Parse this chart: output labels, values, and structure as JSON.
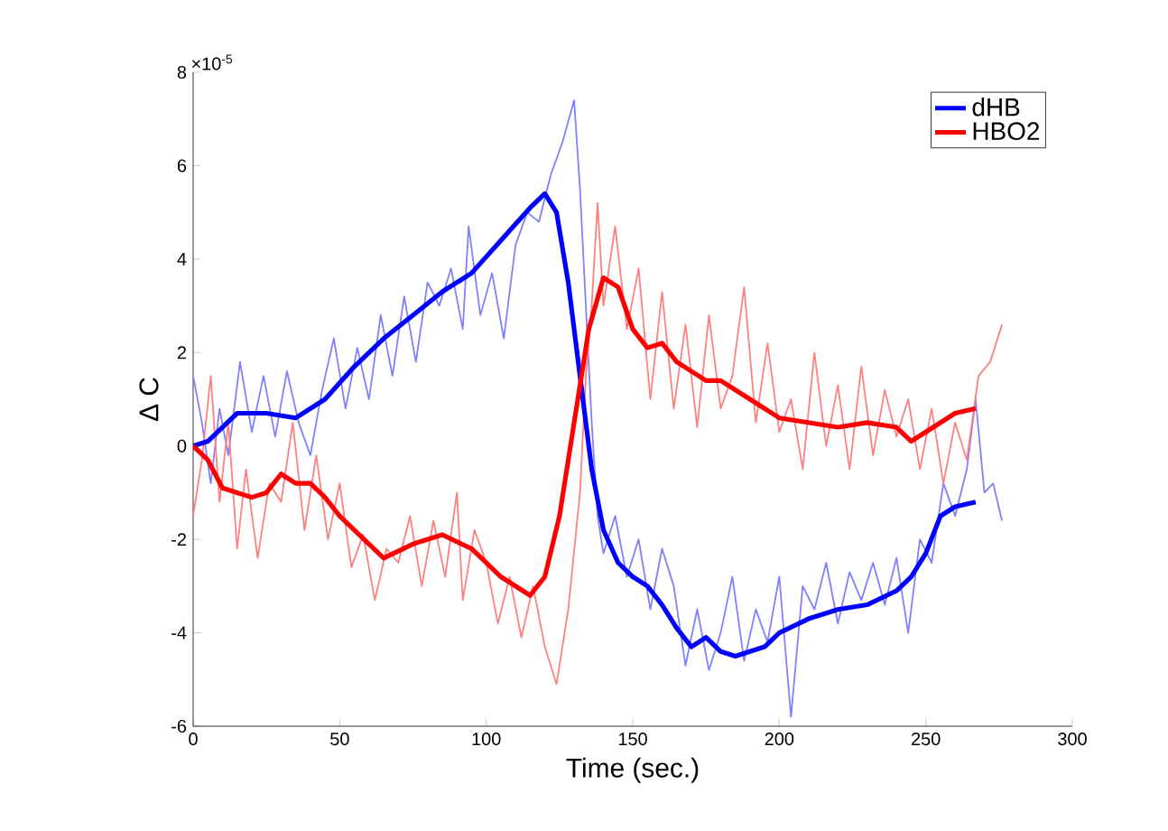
{
  "chart_data": {
    "type": "line",
    "xlabel": "Time (sec.)",
    "ylabel": "Δ C",
    "annotations": [
      "×10$^{-5}$"
    ],
    "xlim": [
      0,
      300
    ],
    "xticks": [
      0,
      50,
      100,
      150,
      200,
      250,
      300
    ],
    "ylim": [
      -6,
      8
    ],
    "yticks": [
      -6,
      -4,
      -2,
      0,
      2,
      4,
      6,
      8
    ],
    "grid": false,
    "legend": "top right",
    "marker": "none",
    "line_style": "solid",
    "series": [
      {
        "color": "#8080ff",
        "x": [
          0,
          3,
          6,
          9,
          12,
          16,
          20,
          24,
          28,
          32,
          36,
          40,
          44,
          48,
          52,
          56,
          60,
          64,
          68,
          72,
          76,
          80,
          84,
          88,
          92,
          94,
          98,
          102,
          106,
          110,
          114,
          118,
          122,
          126,
          130,
          132,
          134,
          136,
          138,
          140,
          144,
          148,
          152,
          156,
          160,
          164,
          168,
          172,
          176,
          180,
          184,
          188,
          192,
          196,
          200,
          204,
          208,
          212,
          216,
          220,
          224,
          228,
          232,
          236,
          240,
          244,
          248,
          252,
          256,
          260,
          264,
          267,
          270,
          273,
          276
        ],
        "values": [
          1.5,
          0.5,
          -0.8,
          0.8,
          -0.2,
          1.8,
          0.3,
          1.5,
          0.2,
          1.6,
          0.5,
          -0.2,
          1.2,
          2.3,
          0.8,
          2.1,
          1.0,
          2.8,
          1.5,
          3.2,
          1.8,
          3.5,
          3.0,
          3.8,
          2.5,
          4.7,
          2.8,
          3.7,
          2.3,
          4.3,
          5.0,
          4.8,
          5.8,
          6.5,
          7.4,
          5.5,
          3.0,
          0.5,
          -1.5,
          -2.3,
          -1.5,
          -2.8,
          -2.0,
          -3.5,
          -2.2,
          -3.0,
          -4.7,
          -3.5,
          -4.8,
          -4.0,
          -2.8,
          -4.6,
          -3.5,
          -4.2,
          -2.8,
          -5.8,
          -3.0,
          -3.5,
          -2.5,
          -3.8,
          -2.7,
          -3.3,
          -2.5,
          -3.4,
          -2.4,
          -4.0,
          -2.0,
          -2.5,
          -0.8,
          -1.5,
          -0.5,
          1.0,
          -1.0,
          -0.8,
          -1.6
        ]
      },
      {
        "color": "#ff8080",
        "x": [
          0,
          3,
          6,
          9,
          12,
          15,
          18,
          22,
          26,
          30,
          34,
          38,
          42,
          46,
          50,
          54,
          58,
          62,
          66,
          70,
          74,
          78,
          82,
          86,
          90,
          92,
          96,
          100,
          104,
          108,
          112,
          116,
          120,
          124,
          128,
          132,
          134,
          136,
          138,
          140,
          144,
          148,
          152,
          156,
          160,
          164,
          168,
          172,
          176,
          180,
          184,
          188,
          192,
          196,
          200,
          204,
          208,
          212,
          216,
          220,
          224,
          228,
          232,
          236,
          240,
          244,
          248,
          252,
          256,
          260,
          264,
          268,
          272,
          276
        ],
        "values": [
          -1.5,
          -0.3,
          1.5,
          -1.2,
          0.5,
          -2.2,
          -0.5,
          -2.4,
          -0.8,
          -1.2,
          0.5,
          -1.8,
          -0.2,
          -2.0,
          -0.8,
          -2.6,
          -1.9,
          -3.3,
          -2.2,
          -2.5,
          -1.5,
          -3.0,
          -1.6,
          -2.8,
          -1.0,
          -3.3,
          -1.8,
          -2.5,
          -3.8,
          -2.8,
          -4.1,
          -3.0,
          -4.3,
          -5.1,
          -3.5,
          -1.0,
          1.5,
          3.0,
          5.2,
          3.0,
          4.7,
          2.5,
          3.8,
          1.0,
          3.3,
          0.8,
          2.6,
          0.4,
          2.8,
          0.8,
          1.5,
          3.4,
          0.5,
          2.2,
          0.3,
          1.0,
          -0.5,
          2.0,
          0.0,
          1.3,
          -0.5,
          1.7,
          -0.2,
          1.2,
          0.2,
          1.0,
          -0.5,
          0.8,
          -0.8,
          0.5,
          -0.3,
          1.5,
          1.8,
          2.6
        ]
      },
      {
        "name": "dHB",
        "color": "#0000ff",
        "x": [
          0,
          5,
          15,
          25,
          35,
          45,
          55,
          65,
          75,
          85,
          95,
          105,
          115,
          120,
          124,
          128,
          132,
          136,
          140,
          145,
          150,
          155,
          160,
          165,
          170,
          175,
          180,
          185,
          190,
          195,
          200,
          210,
          220,
          230,
          240,
          245,
          250,
          255,
          260,
          267
        ],
        "values": [
          0,
          0.1,
          0.7,
          0.7,
          0.6,
          1.0,
          1.7,
          2.3,
          2.8,
          3.3,
          3.7,
          4.4,
          5.1,
          5.4,
          5.0,
          3.5,
          1.5,
          -0.5,
          -1.8,
          -2.5,
          -2.8,
          -3.0,
          -3.4,
          -3.9,
          -4.3,
          -4.1,
          -4.4,
          -4.5,
          -4.4,
          -4.3,
          -4.0,
          -3.7,
          -3.5,
          -3.4,
          -3.1,
          -2.8,
          -2.3,
          -1.5,
          -1.3,
          -1.2
        ]
      },
      {
        "name": "HBO2",
        "color": "#ff0000",
        "x": [
          0,
          5,
          10,
          20,
          25,
          30,
          35,
          40,
          45,
          50,
          60,
          65,
          75,
          85,
          95,
          105,
          115,
          120,
          125,
          130,
          135,
          140,
          145,
          150,
          155,
          160,
          165,
          170,
          175,
          180,
          190,
          200,
          210,
          220,
          230,
          240,
          245,
          250,
          255,
          260,
          267
        ],
        "values": [
          0,
          -0.3,
          -0.9,
          -1.1,
          -1.0,
          -0.6,
          -0.8,
          -0.8,
          -1.1,
          -1.5,
          -2.1,
          -2.4,
          -2.1,
          -1.9,
          -2.2,
          -2.8,
          -3.2,
          -2.8,
          -1.5,
          0.5,
          2.5,
          3.6,
          3.4,
          2.5,
          2.1,
          2.2,
          1.8,
          1.6,
          1.4,
          1.4,
          1.0,
          0.6,
          0.5,
          0.4,
          0.5,
          0.4,
          0.1,
          0.3,
          0.5,
          0.7,
          0.8
        ]
      }
    ]
  }
}
